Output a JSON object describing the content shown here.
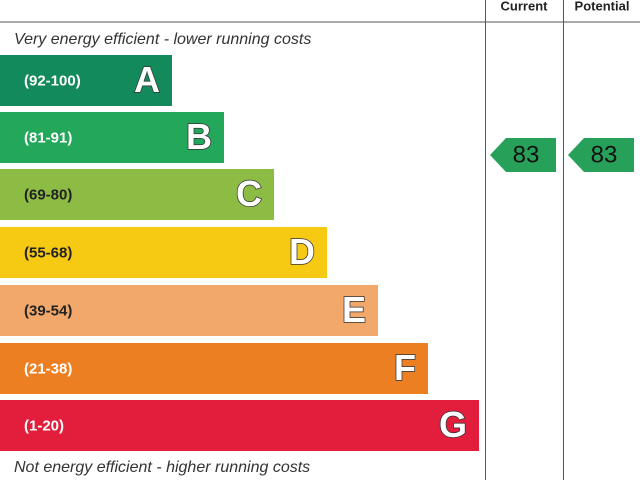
{
  "header": {
    "current": "Current",
    "potential": "Potential"
  },
  "top_label": "Very energy efficient - lower running costs",
  "bottom_label": "Not energy efficient - higher running costs",
  "bands": [
    {
      "range": "(92-100)",
      "letter": "A"
    },
    {
      "range": "(81-91)",
      "letter": "B"
    },
    {
      "range": "(69-80)",
      "letter": "C"
    },
    {
      "range": "(55-68)",
      "letter": "D"
    },
    {
      "range": "(39-54)",
      "letter": "E"
    },
    {
      "range": "(21-38)",
      "letter": "F"
    },
    {
      "range": "(1-20)",
      "letter": "G"
    }
  ],
  "current": 83,
  "potential": 83
}
